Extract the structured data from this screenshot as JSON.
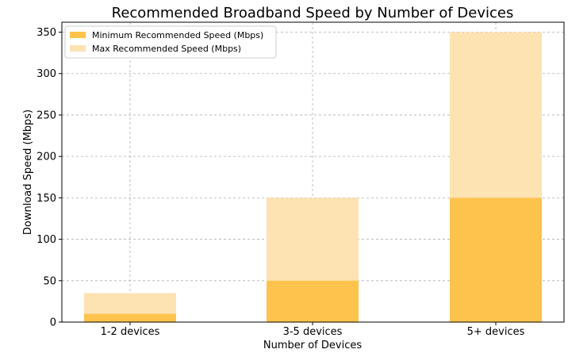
{
  "chart_data": {
    "type": "bar",
    "title": "Recommended Broadband Speed by Number of Devices",
    "xlabel": "Number of Devices",
    "ylabel": "Download Speed (Mbps)",
    "categories": [
      "1-2 devices",
      "3-5 devices",
      "5+ devices"
    ],
    "series": [
      {
        "name": "Minimum Recommended Speed (Mbps)",
        "values": [
          10,
          50,
          150
        ],
        "color": "#fdc34d"
      },
      {
        "name": "Max Recommended Speed (Mbps)",
        "values": [
          35,
          150,
          350
        ],
        "color": "#fde2b2"
      }
    ],
    "ylim": [
      0,
      362
    ],
    "yticks": [
      0,
      50,
      100,
      150,
      200,
      250,
      300,
      350
    ],
    "grid": true,
    "legend": "top-left",
    "overlaid": true
  }
}
